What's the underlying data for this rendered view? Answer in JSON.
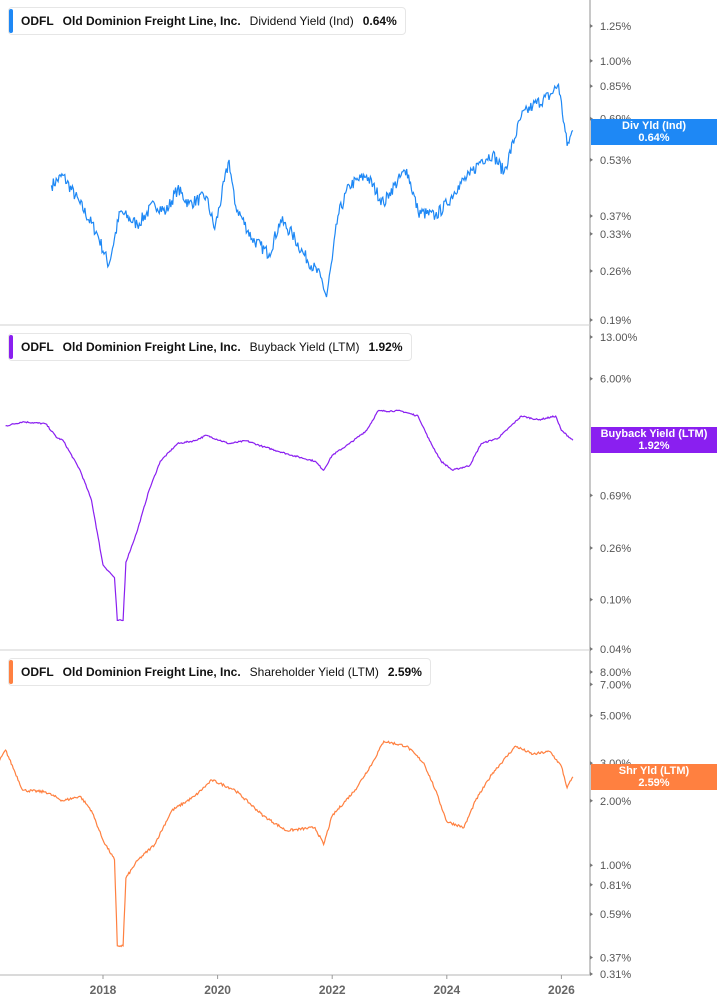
{
  "ticker": "ODFL",
  "company": "Old Dominion Freight Line, Inc.",
  "chart_data": [
    {
      "type": "line",
      "metric": "Dividend Yield (Ind)",
      "current_value": "0.64%",
      "flag_label": "Div Yld (Ind)",
      "color": "#1e88f5",
      "yscale": "log",
      "ylim": [
        0.17,
        1.5
      ],
      "yticks": [
        "1.25%",
        "1.00%",
        "0.85%",
        "0.69%",
        "0.53%",
        "0.37%",
        "0.33%",
        "0.26%",
        "0.19%"
      ],
      "ytick_values": [
        1.25,
        1.0,
        0.85,
        0.69,
        0.53,
        0.37,
        0.33,
        0.26,
        0.19
      ],
      "x": [
        2017.1,
        2017.3,
        2017.6,
        2017.9,
        2018.1,
        2018.3,
        2018.6,
        2018.9,
        2019.1,
        2019.3,
        2019.5,
        2019.8,
        2019.95,
        2020.2,
        2020.3,
        2020.6,
        2020.9,
        2021.1,
        2021.3,
        2021.5,
        2021.8,
        2021.9,
        2022.0,
        2022.1,
        2022.3,
        2022.6,
        2022.9,
        2023.0,
        2023.3,
        2023.5,
        2023.8,
        2024.0,
        2024.2,
        2024.4,
        2024.6,
        2024.8,
        2025.0,
        2025.3,
        2025.5,
        2025.8,
        2025.95,
        2026.1,
        2026.2
      ],
      "values": [
        0.45,
        0.48,
        0.4,
        0.33,
        0.27,
        0.38,
        0.35,
        0.4,
        0.38,
        0.44,
        0.4,
        0.42,
        0.34,
        0.53,
        0.4,
        0.32,
        0.29,
        0.36,
        0.33,
        0.29,
        0.25,
        0.22,
        0.28,
        0.37,
        0.45,
        0.48,
        0.4,
        0.43,
        0.5,
        0.38,
        0.37,
        0.4,
        0.45,
        0.48,
        0.53,
        0.55,
        0.49,
        0.7,
        0.75,
        0.8,
        0.86,
        0.58,
        0.64
      ]
    },
    {
      "type": "line",
      "metric": "Buyback Yield (LTM)",
      "current_value": "1.92%",
      "flag_label": "Buyback Yield (LTM)",
      "color": "#8a1ff0",
      "yscale": "log",
      "ylim": [
        0.04,
        13.0
      ],
      "yticks": [
        "13.00%",
        "6.00%",
        "0.69%",
        "0.26%",
        "0.10%",
        "0.04%"
      ],
      "ytick_values": [
        13,
        6,
        0.69,
        0.26,
        0.1,
        0.04
      ],
      "x": [
        2016.3,
        2016.6,
        2017.0,
        2017.2,
        2017.3,
        2017.6,
        2017.8,
        2018.0,
        2018.2,
        2018.25,
        2018.35,
        2018.4,
        2018.6,
        2018.8,
        2019.0,
        2019.3,
        2019.6,
        2019.8,
        2020.2,
        2020.5,
        2020.8,
        2021.3,
        2021.7,
        2021.85,
        2022.0,
        2022.3,
        2022.6,
        2022.8,
        2023.2,
        2023.5,
        2023.7,
        2023.9,
        2024.1,
        2024.4,
        2024.6,
        2024.9,
        2025.3,
        2025.6,
        2025.9,
        2026.0,
        2026.2
      ],
      "values": [
        2.5,
        2.7,
        2.6,
        2.0,
        1.92,
        1.1,
        0.63,
        0.19,
        0.15,
        0.068,
        0.068,
        0.2,
        0.36,
        0.75,
        1.3,
        1.8,
        1.9,
        2.1,
        1.8,
        1.9,
        1.7,
        1.45,
        1.3,
        1.1,
        1.45,
        1.8,
        2.3,
        3.3,
        3.3,
        3.0,
        1.9,
        1.3,
        1.1,
        1.2,
        1.8,
        2.0,
        3.0,
        2.8,
        3.0,
        2.3,
        1.92
      ]
    },
    {
      "type": "line",
      "metric": "Shareholder Yield (LTM)",
      "current_value": "2.59%",
      "flag_label": "Shr Yld (LTM)",
      "color": "#ff8040",
      "yscale": "log",
      "ylim": [
        0.31,
        8.0
      ],
      "yticks": [
        "8.00%",
        "7.00%",
        "5.00%",
        "3.00%",
        "2.00%",
        "1.00%",
        "0.81%",
        "0.59%",
        "0.37%",
        "0.31%"
      ],
      "ytick_values": [
        8,
        7,
        5,
        3,
        2,
        1,
        0.81,
        0.59,
        0.37,
        0.31
      ],
      "x": [
        2016.0,
        2016.3,
        2016.6,
        2017.0,
        2017.3,
        2017.6,
        2017.8,
        2018.0,
        2018.2,
        2018.25,
        2018.35,
        2018.4,
        2018.6,
        2018.9,
        2019.2,
        2019.6,
        2019.9,
        2020.3,
        2020.8,
        2021.2,
        2021.7,
        2021.85,
        2022.0,
        2022.4,
        2022.7,
        2022.9,
        2023.3,
        2023.6,
        2023.8,
        2024.0,
        2024.3,
        2024.5,
        2024.8,
        2025.2,
        2025.5,
        2025.8,
        2026.0,
        2026.1,
        2026.2
      ],
      "values": [
        2.5,
        3.45,
        2.24,
        2.2,
        2.0,
        2.1,
        1.8,
        1.31,
        1.06,
        0.42,
        0.42,
        0.87,
        1.05,
        1.25,
        1.8,
        2.1,
        2.5,
        2.25,
        1.7,
        1.45,
        1.5,
        1.25,
        1.7,
        2.25,
        3.0,
        3.8,
        3.6,
        3.0,
        2.25,
        1.6,
        1.5,
        2.0,
        2.7,
        3.6,
        3.3,
        3.4,
        2.9,
        2.3,
        2.59
      ]
    }
  ],
  "xaxis": {
    "ticks": [
      "2018",
      "2020",
      "2022",
      "2024",
      "2026"
    ],
    "tick_values": [
      2018,
      2020,
      2022,
      2024,
      2026
    ]
  }
}
